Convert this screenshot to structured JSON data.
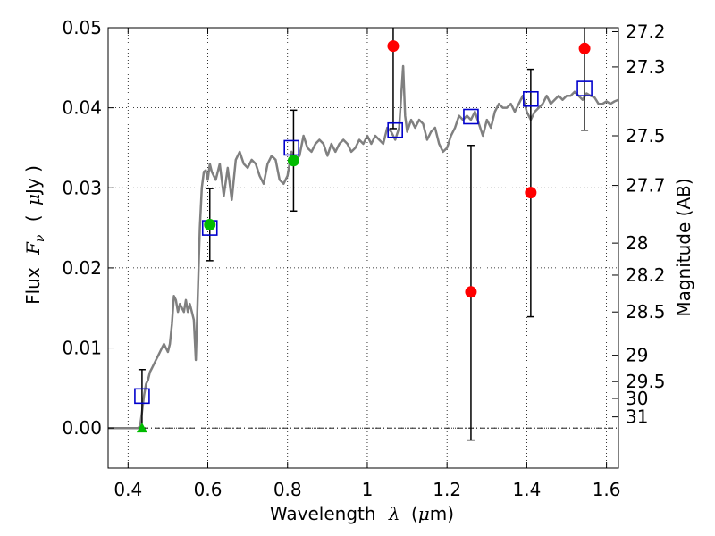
{
  "chart_data": {
    "type": "scatter",
    "xlabel_text": "Wavelength",
    "xlabel_symbol": "λ",
    "xlabel_unit_open": "(",
    "xlabel_unit_mu": "μ",
    "xlabel_unit_rest": "m)",
    "ylabel_text": "Flux",
    "ylabel_symbol_F": "F",
    "ylabel_symbol_sub": "ν",
    "ylabel_unit_open": "(",
    "ylabel_unit_mu": "μ",
    "ylabel_unit_rest": "Jy )",
    "y2label": "Magnitude (AB)",
    "xlim": [
      0.35,
      1.63
    ],
    "ylim": [
      -0.005,
      0.05
    ],
    "grid": true,
    "x_ticks": [
      0.4,
      0.6,
      0.8,
      1.0,
      1.2,
      1.4,
      1.6
    ],
    "x_tick_labels": [
      "0.4",
      "0.6",
      "0.8",
      "1",
      "1.2",
      "1.4",
      "1.6"
    ],
    "y_ticks": [
      0.0,
      0.01,
      0.02,
      0.03,
      0.04,
      0.05
    ],
    "y_tick_labels": [
      "0.00",
      "0.01",
      "0.02",
      "0.03",
      "0.04",
      "0.05"
    ],
    "mag_ticks": [
      {
        "flux": 0.0495,
        "label": "27.2"
      },
      {
        "flux": 0.0451,
        "label": "27.3"
      },
      {
        "flux": 0.0365,
        "label": "27.5"
      },
      {
        "flux": 0.0303,
        "label": "27.7"
      },
      {
        "flux": 0.0231,
        "label": "28"
      },
      {
        "flux": 0.0191,
        "label": "28.2"
      },
      {
        "flux": 0.0145,
        "label": "28.5"
      },
      {
        "flux": 0.0091,
        "label": "29"
      },
      {
        "flux": 0.0058,
        "label": "29.5"
      },
      {
        "flux": 0.0037,
        "label": "30"
      },
      {
        "flux": 0.0014,
        "label": "31"
      }
    ],
    "zero_line_style": "dash-dot",
    "model_spectrum": {
      "color": "#808080",
      "x": [
        0.35,
        0.425,
        0.43,
        0.435,
        0.44,
        0.445,
        0.45,
        0.455,
        0.46,
        0.465,
        0.47,
        0.475,
        0.48,
        0.485,
        0.49,
        0.495,
        0.5,
        0.505,
        0.51,
        0.515,
        0.52,
        0.525,
        0.53,
        0.535,
        0.54,
        0.545,
        0.55,
        0.555,
        0.56,
        0.565,
        0.57,
        0.58,
        0.585,
        0.59,
        0.595,
        0.6,
        0.605,
        0.61,
        0.62,
        0.63,
        0.64,
        0.65,
        0.66,
        0.67,
        0.68,
        0.69,
        0.7,
        0.71,
        0.72,
        0.73,
        0.74,
        0.75,
        0.76,
        0.77,
        0.78,
        0.79,
        0.8,
        0.81,
        0.82,
        0.83,
        0.84,
        0.85,
        0.86,
        0.87,
        0.88,
        0.89,
        0.9,
        0.91,
        0.92,
        0.93,
        0.94,
        0.95,
        0.96,
        0.97,
        0.98,
        0.99,
        1.0,
        1.01,
        1.02,
        1.03,
        1.04,
        1.05,
        1.06,
        1.07,
        1.08,
        1.085,
        1.09,
        1.095,
        1.1,
        1.11,
        1.12,
        1.13,
        1.14,
        1.15,
        1.16,
        1.17,
        1.18,
        1.19,
        1.2,
        1.21,
        1.22,
        1.23,
        1.24,
        1.25,
        1.26,
        1.27,
        1.28,
        1.29,
        1.3,
        1.31,
        1.32,
        1.33,
        1.34,
        1.35,
        1.36,
        1.37,
        1.38,
        1.39,
        1.4,
        1.41,
        1.42,
        1.43,
        1.44,
        1.45,
        1.46,
        1.47,
        1.48,
        1.49,
        1.5,
        1.51,
        1.52,
        1.53,
        1.54,
        1.55,
        1.56,
        1.57,
        1.58,
        1.59,
        1.6,
        1.61,
        1.62,
        1.63
      ],
      "y": [
        0.0,
        0.0,
        0.0002,
        0.002,
        0.004,
        0.0055,
        0.006,
        0.007,
        0.0075,
        0.008,
        0.0085,
        0.009,
        0.0095,
        0.01,
        0.0105,
        0.01,
        0.0095,
        0.0105,
        0.013,
        0.0165,
        0.016,
        0.0145,
        0.0155,
        0.015,
        0.0145,
        0.016,
        0.0145,
        0.0155,
        0.0145,
        0.0135,
        0.0085,
        0.025,
        0.03,
        0.032,
        0.0322,
        0.031,
        0.033,
        0.032,
        0.031,
        0.033,
        0.029,
        0.0325,
        0.0285,
        0.0335,
        0.0345,
        0.033,
        0.0325,
        0.0335,
        0.033,
        0.0315,
        0.0305,
        0.033,
        0.034,
        0.0335,
        0.031,
        0.0305,
        0.0315,
        0.0345,
        0.0335,
        0.034,
        0.0365,
        0.035,
        0.0345,
        0.0355,
        0.036,
        0.0355,
        0.034,
        0.0355,
        0.0345,
        0.0355,
        0.036,
        0.0355,
        0.0345,
        0.035,
        0.036,
        0.0355,
        0.0365,
        0.0355,
        0.0365,
        0.036,
        0.0355,
        0.0375,
        0.037,
        0.036,
        0.0375,
        0.0415,
        0.0452,
        0.039,
        0.037,
        0.0385,
        0.0375,
        0.0385,
        0.038,
        0.036,
        0.037,
        0.0375,
        0.0355,
        0.0345,
        0.035,
        0.0365,
        0.0375,
        0.039,
        0.0385,
        0.039,
        0.0385,
        0.0395,
        0.038,
        0.0365,
        0.0385,
        0.0375,
        0.0395,
        0.0405,
        0.04,
        0.04,
        0.0405,
        0.0395,
        0.0405,
        0.0415,
        0.0395,
        0.0385,
        0.0395,
        0.04,
        0.0405,
        0.0415,
        0.0405,
        0.041,
        0.0415,
        0.041,
        0.0415,
        0.0415,
        0.042,
        0.0415,
        0.041,
        0.0418,
        0.0415,
        0.0413,
        0.0405,
        0.0405,
        0.0408,
        0.0405,
        0.0408,
        0.041
      ]
    },
    "model_points": {
      "color": "#0000cc",
      "marker": "open-square",
      "x": [
        0.435,
        0.605,
        0.81,
        1.07,
        1.26,
        1.41,
        1.545
      ],
      "y": [
        0.004,
        0.025,
        0.035,
        0.0372,
        0.0389,
        0.0411,
        0.0424
      ]
    },
    "detections": {
      "color": "#00bb00",
      "marker": "filled-circle",
      "x": [
        0.605,
        0.815
      ],
      "y": [
        0.0254,
        0.0334
      ],
      "yerr": [
        0.0045,
        0.0063
      ]
    },
    "upper_limit": {
      "color": "#00bb00",
      "marker": "triangle",
      "x": [
        0.435
      ],
      "y": [
        0.0
      ],
      "err_low": [
        0.0
      ],
      "err_high": [
        0.0073
      ]
    },
    "nondetections": {
      "color": "#ff0000",
      "marker": "filled-circle",
      "x": [
        1.065,
        1.26,
        1.41,
        1.545
      ],
      "y": [
        0.0477,
        0.017,
        0.0294,
        0.0474
      ],
      "err_low": [
        0.0103,
        0.0185,
        0.0155,
        0.0102
      ],
      "err_high": [
        0.0103,
        0.0183,
        0.0154,
        0.0102
      ]
    }
  }
}
